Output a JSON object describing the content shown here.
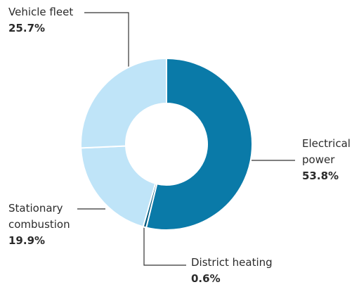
{
  "chart_data": {
    "type": "pie",
    "categories": [
      "Electrical power",
      "District heating",
      "Stationary combustion",
      "Vehicle fleet"
    ],
    "values": [
      53.8,
      0.6,
      19.9,
      25.7
    ],
    "value_labels": [
      "53.8%",
      "0.6%",
      "19.9%",
      "25.7%"
    ],
    "colors": [
      "#0a7aa8",
      "#005a80",
      "#bfe4f8",
      "#bfe4f8"
    ]
  }
}
